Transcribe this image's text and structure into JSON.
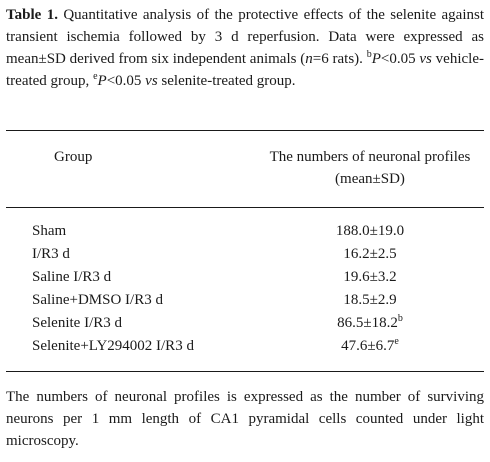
{
  "caption": {
    "label": "Table 1.",
    "text_a": " Quantitative analysis of the protective effects of the selenite against transient ischemia followed by 3 d reperfusion. Data were expressed as mean±SD derived from six independent animals (",
    "n_italic": "n",
    "text_b": "=6 rats). ",
    "sig_b_mark": "b",
    "sig_b_p": "P",
    "sig_b_text": "<0.05 ",
    "vs1": "vs",
    "sig_b_rest": " vehicle-treated group, ",
    "sig_e_mark": "e",
    "sig_e_p": "P",
    "sig_e_text": "<0.05 ",
    "vs2": "vs",
    "sig_e_rest": " selenite-treated group."
  },
  "table": {
    "header_group": "Group",
    "header_value_line1": "The numbers of neuronal profiles",
    "header_value_line2": "(mean±SD)",
    "rows": [
      {
        "group": "Sham",
        "value": "188.0±19.0",
        "sup": ""
      },
      {
        "group": "I/R3 d",
        "value": "16.2±2.5",
        "sup": ""
      },
      {
        "group": "Saline I/R3 d",
        "value": "19.6±3.2",
        "sup": ""
      },
      {
        "group": "Saline+DMSO I/R3 d",
        "value": "18.5±2.9",
        "sup": ""
      },
      {
        "group": "Selenite I/R3 d",
        "value": "86.5±18.2",
        "sup": "b"
      },
      {
        "group": "Selenite+LY294002 I/R3 d",
        "value": "47.6±6.7",
        "sup": "e"
      }
    ]
  },
  "footnote": "The numbers of neuronal profiles is expressed as the number of surviving neurons per 1 mm length of CA1 pyramidal cells counted under light microscopy."
}
